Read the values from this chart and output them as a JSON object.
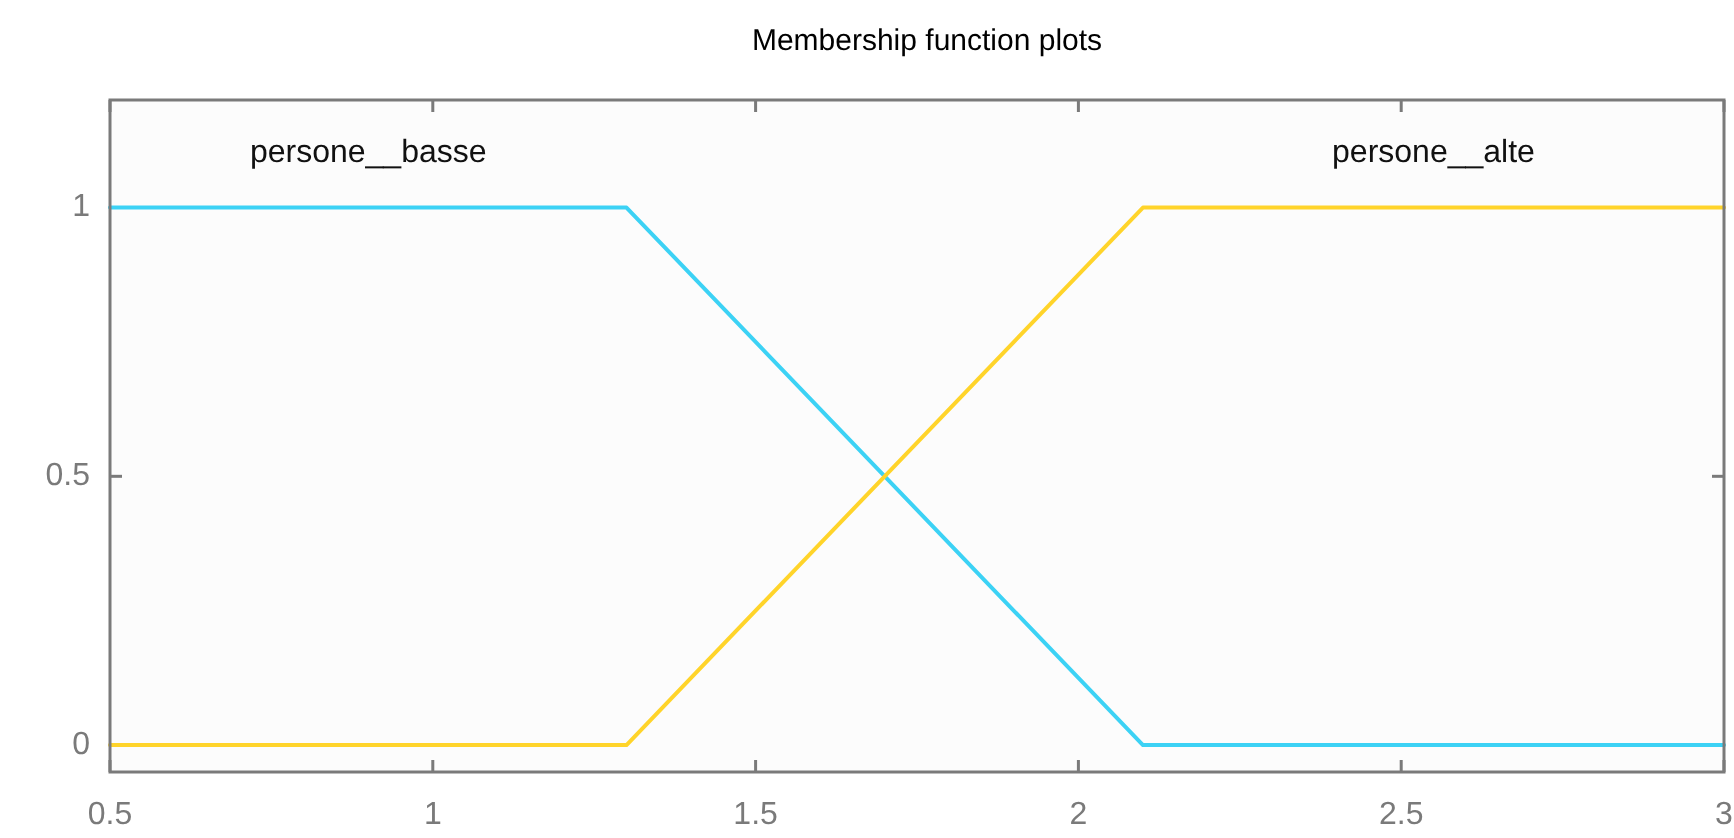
{
  "chart_data": {
    "type": "line",
    "title": "Membership function plots",
    "x": [
      0.5,
      1.3,
      2.1,
      3
    ],
    "series": [
      {
        "name": "persone__basse",
        "color": "#3cd2f5",
        "values": [
          1,
          1,
          0,
          0
        ]
      },
      {
        "name": "persone__alte",
        "color": "#ffd42a",
        "values": [
          0,
          0,
          1,
          1
        ]
      }
    ],
    "xlim": [
      0.5,
      3
    ],
    "ylim": [
      -0.05,
      1.2
    ],
    "xticks": [
      0.5,
      1,
      1.5,
      2,
      2.5,
      3
    ],
    "yticks": [
      0,
      0.5,
      1
    ]
  }
}
